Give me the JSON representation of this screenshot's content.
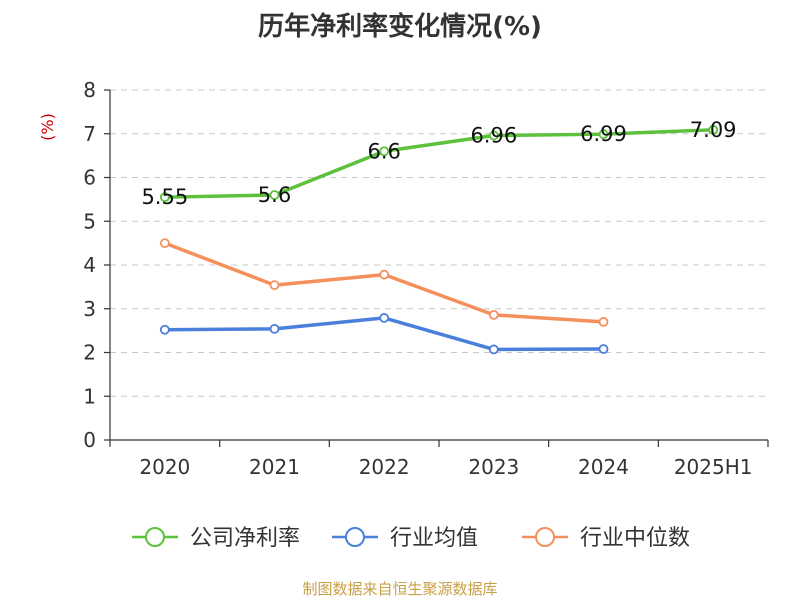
{
  "chart_data": {
    "type": "line",
    "title": "历年净利率变化情况(%)",
    "ylabel": "(%)",
    "xlabel": "",
    "categories": [
      "2020",
      "2021",
      "2022",
      "2023",
      "2024",
      "2025H1"
    ],
    "ylim": [
      0,
      8
    ],
    "yticks": [
      0,
      1,
      2,
      3,
      4,
      5,
      6,
      7,
      8
    ],
    "grid": true,
    "legend_position": "bottom",
    "series": [
      {
        "name": "公司净利率",
        "color": "#5cc13b",
        "values": [
          5.55,
          5.6,
          6.6,
          6.96,
          6.99,
          7.09
        ],
        "labels": [
          "5.55",
          "5.6",
          "6.6",
          "6.96",
          "6.99",
          "7.09"
        ],
        "show_labels": true
      },
      {
        "name": "行业均值",
        "color": "#4a7fdb",
        "values": [
          2.52,
          2.54,
          2.79,
          2.07,
          2.08,
          null
        ],
        "show_labels": false
      },
      {
        "name": "行业中位数",
        "color": "#f58f5b",
        "values": [
          4.5,
          3.54,
          3.78,
          2.86,
          2.7,
          null
        ],
        "show_labels": false
      }
    ]
  },
  "source_text": "制图数据来自恒生聚源数据库",
  "colors": {
    "ylabel": "#cc0000",
    "grid": "#c8c8c8",
    "axis": "#333333",
    "title": "#333333",
    "source": "#c8a046"
  }
}
